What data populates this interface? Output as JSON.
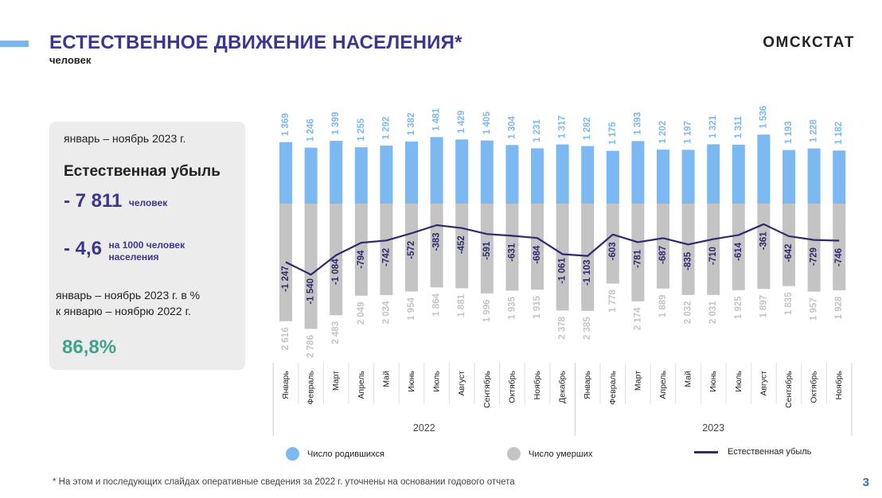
{
  "header": {
    "title": "ЕСТЕСТВЕННОЕ ДВИЖЕНИЕ НАСЕЛЕНИЯ*",
    "subtitle": "человек",
    "brand": "ОМСКСТАТ"
  },
  "panel": {
    "period": "январь – ноябрь 2023 г.",
    "heading": "Естественная убыль",
    "value1": "- 7 811",
    "value1_unit": "человек",
    "value2": "- 4,6",
    "value2_unit_line1": "на 1000 человек",
    "value2_unit_line2": "населения",
    "compare_line1": "январь – ноябрь 2023 г. в %",
    "compare_line2": "к январю – ноябрю 2022 г.",
    "percent": "86,8%"
  },
  "legend": {
    "births": "Число родившихся",
    "deaths": "Число умерших",
    "natural": "Естественная убыль"
  },
  "footnote": "* На этом и последующих слайдах оперативные сведения за 2022 г. уточнены на основании годового отчета",
  "page_number": "3",
  "colors": {
    "births": "#7cb8f2",
    "deaths": "#c4c4c4",
    "line": "#2e2a6e",
    "title": "#3b3790",
    "percent": "#3fa58d"
  },
  "chart_data": {
    "type": "bar",
    "years": [
      {
        "label": "2022",
        "count": 12
      },
      {
        "label": "2023",
        "count": 11
      }
    ],
    "categories": [
      "Январь",
      "Февраль",
      "Март",
      "Апрель",
      "Май",
      "Июнь",
      "Июль",
      "Август",
      "Сентябрь",
      "Октябрь",
      "Ноябрь",
      "Декабрь",
      "Январь",
      "Февраль",
      "Март",
      "Апрель",
      "Май",
      "Июнь",
      "Июль",
      "Август",
      "Сентябрь",
      "Октябрь",
      "Ноябрь"
    ],
    "series": [
      {
        "name": "Число родившихся",
        "kind": "bar-up",
        "values": [
          1369,
          1246,
          1399,
          1255,
          1292,
          1382,
          1481,
          1429,
          1405,
          1304,
          1231,
          1317,
          1282,
          1175,
          1393,
          1202,
          1197,
          1321,
          1311,
          1536,
          1193,
          1228,
          1182
        ],
        "labels": [
          "1 369",
          "1 246",
          "1 399",
          "1 255",
          "1 292",
          "1 382",
          "1 481",
          "1 429",
          "1 405",
          "1 304",
          "1 231",
          "1 317",
          "1 282",
          "1 175",
          "1 393",
          "1 202",
          "1 197",
          "1 321",
          "1 311",
          "1 536",
          "1 193",
          "1 228",
          "1 182"
        ]
      },
      {
        "name": "Число умерших",
        "kind": "bar-down",
        "values": [
          2616,
          2786,
          2483,
          2049,
          2034,
          1954,
          1864,
          1881,
          1996,
          1935,
          1915,
          2378,
          2385,
          1778,
          2174,
          1889,
          2032,
          2031,
          1925,
          1897,
          1835,
          1957,
          1928
        ],
        "labels": [
          "2 616",
          "2 786",
          "2 483",
          "2 049",
          "2 034",
          "1 954",
          "1 864",
          "1 881",
          "1 996",
          "1 935",
          "1 915",
          "2 378",
          "2 385",
          "1 778",
          "2 174",
          "1 889",
          "2 032",
          "2 031",
          "1 925",
          "1 897",
          "1 835",
          "1 957",
          "1 928"
        ]
      },
      {
        "name": "Естественная убыль",
        "kind": "line",
        "values": [
          -1247,
          -1540,
          -1084,
          -794,
          -742,
          -572,
          -383,
          -452,
          -591,
          -631,
          -684,
          -1061,
          -1103,
          -603,
          -781,
          -687,
          -835,
          -710,
          -614,
          -361,
          -642,
          -729,
          -746
        ],
        "labels": [
          "-1 247",
          "-1 540",
          "-1 084",
          "-794",
          "-742",
          "-572",
          "-383",
          "-452",
          "-591",
          "-631",
          "-684",
          "-1 061",
          "-1 103",
          "-603",
          "-781",
          "-687",
          "-835",
          "-710",
          "-614",
          "-361",
          "-642",
          "-729",
          "-746"
        ]
      }
    ]
  }
}
